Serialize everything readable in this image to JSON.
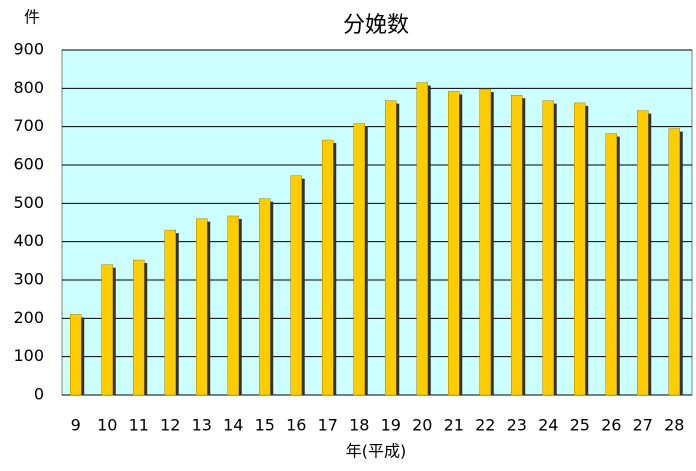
{
  "chart_data": {
    "type": "bar",
    "title": "分娩数",
    "y_label": "件",
    "x_label": "年(平成)",
    "categories": [
      "9",
      "10",
      "11",
      "12",
      "13",
      "14",
      "15",
      "16",
      "17",
      "18",
      "19",
      "20",
      "21",
      "22",
      "23",
      "24",
      "25",
      "26",
      "27",
      "28"
    ],
    "values": [
      210,
      340,
      352,
      430,
      460,
      467,
      512,
      572,
      665,
      708,
      768,
      815,
      792,
      798,
      782,
      768,
      762,
      682,
      742,
      695
    ],
    "color": "#ffcc00",
    "ylim": [
      0,
      900
    ],
    "yticks": [
      0,
      100,
      200,
      300,
      400,
      500,
      600,
      700,
      800,
      900
    ],
    "grid": true
  }
}
